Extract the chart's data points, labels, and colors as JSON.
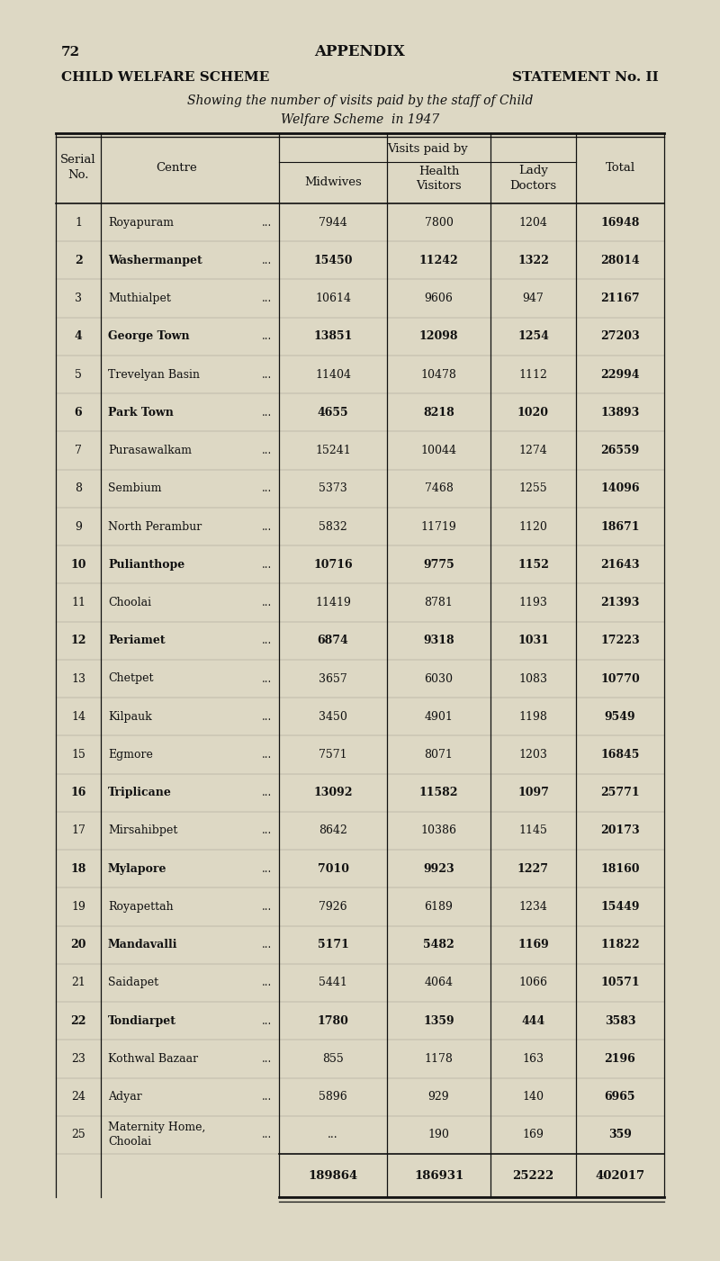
{
  "page_number": "72",
  "appendix_title": "APPENDIX",
  "left_title": "CHILD WELFARE SCHEME",
  "right_title": "STATEMENT No. II",
  "subtitle1": "Showing the number of visits paid by the staff of Child",
  "subtitle2": "Welfare Scheme  in 1947",
  "subheader": "Visits paid by",
  "col_header_serial": "Serial\nNo.",
  "col_header_centre": "Centre",
  "col_header_midwives": "Midwives",
  "col_header_hv": "Health\nVisitors",
  "col_header_ld": "Lady\nDoctors",
  "col_header_total": "Total",
  "rows": [
    {
      "serial": "1",
      "centre": "Royapuram",
      "dots": "...",
      "midwives": "7944",
      "hv": "7800",
      "ld": "1204",
      "total": "16948"
    },
    {
      "serial": "2",
      "centre": "Washermanpet",
      "dots": "...",
      "midwives": "15450",
      "hv": "11242",
      "ld": "1322",
      "total": "28014"
    },
    {
      "serial": "3",
      "centre": "Muthialpet",
      "dots": "...",
      "midwives": "10614",
      "hv": "9606",
      "ld": "947",
      "total": "21167"
    },
    {
      "serial": "4",
      "centre": "George Town",
      "dots": "...",
      "midwives": "13851",
      "hv": "12098",
      "ld": "1254",
      "total": "27203"
    },
    {
      "serial": "5",
      "centre": "Trevelyan Basin",
      "dots": "...",
      "midwives": "11404",
      "hv": "10478",
      "ld": "1112",
      "total": "22994"
    },
    {
      "serial": "6",
      "centre": "Park Town",
      "dots": "...",
      "midwives": "4655",
      "hv": "8218",
      "ld": "1020",
      "total": "13893"
    },
    {
      "serial": "7",
      "centre": "Purasawalkam",
      "dots": "...",
      "midwives": "15241",
      "hv": "10044",
      "ld": "1274",
      "total": "26559"
    },
    {
      "serial": "8",
      "centre": "Sembium",
      "dots": "...",
      "midwives": "5373",
      "hv": "7468",
      "ld": "1255",
      "total": "14096"
    },
    {
      "serial": "9",
      "centre": "North Perambur",
      "dots": "...",
      "midwives": "5832",
      "hv": "11719",
      "ld": "1120",
      "total": "18671"
    },
    {
      "serial": "10",
      "centre": "Pulianthope",
      "dots": "...",
      "midwives": "10716",
      "hv": "9775",
      "ld": "1152",
      "total": "21643"
    },
    {
      "serial": "11",
      "centre": "Choolai",
      "dots": "...",
      "midwives": "11419",
      "hv": "8781",
      "ld": "1193",
      "total": "21393"
    },
    {
      "serial": "12",
      "centre": "Periamet",
      "dots": "...",
      "midwives": "6874",
      "hv": "9318",
      "ld": "1031",
      "total": "17223"
    },
    {
      "serial": "13",
      "centre": "Chetpet",
      "dots": "...",
      "midwives": "3657",
      "hv": "6030",
      "ld": "1083",
      "total": "10770"
    },
    {
      "serial": "14",
      "centre": "Kilpauk",
      "dots": "...",
      "midwives": "3450",
      "hv": "4901",
      "ld": "1198",
      "total": "9549"
    },
    {
      "serial": "15",
      "centre": "Egmore",
      "dots": "...",
      "midwives": "7571",
      "hv": "8071",
      "ld": "1203",
      "total": "16845"
    },
    {
      "serial": "16",
      "centre": "Triplicane",
      "dots": "...",
      "midwives": "13092",
      "hv": "11582",
      "ld": "1097",
      "total": "25771"
    },
    {
      "serial": "17",
      "centre": "Mirsahibpet",
      "dots": "...",
      "midwives": "8642",
      "hv": "10386",
      "ld": "1145",
      "total": "20173"
    },
    {
      "serial": "18",
      "centre": "Mylapore",
      "dots": "...",
      "midwives": "7010",
      "hv": "9923",
      "ld": "1227",
      "total": "18160"
    },
    {
      "serial": "19",
      "centre": "Royapettah",
      "dots": "...",
      "midwives": "7926",
      "hv": "6189",
      "ld": "1234",
      "total": "15449"
    },
    {
      "serial": "20",
      "centre": "Mandavalli",
      "dots": "...",
      "midwives": "5171",
      "hv": "5482",
      "ld": "1169",
      "total": "11822"
    },
    {
      "serial": "21",
      "centre": "Saidapet",
      "dots": "...",
      "midwives": "5441",
      "hv": "4064",
      "ld": "1066",
      "total": "10571"
    },
    {
      "serial": "22",
      "centre": "Tondiarpet",
      "dots": "...",
      "midwives": "1780",
      "hv": "1359",
      "ld": "444",
      "total": "3583"
    },
    {
      "serial": "23",
      "centre": "Kothwal Bazaar",
      "dots": "...",
      "midwives": "855",
      "hv": "1178",
      "ld": "163",
      "total": "2196"
    },
    {
      "serial": "24",
      "centre": "Adyar",
      "dots": "...",
      "midwives": "5896",
      "hv": "929",
      "ld": "140",
      "total": "6965"
    },
    {
      "serial": "25",
      "centre": "Maternity Home,\nChoolai",
      "dots": "...",
      "midwives": "...",
      "hv": "190",
      "ld": "169",
      "total": "359"
    }
  ],
  "totals": {
    "midwives": "189864",
    "hv": "186931",
    "ld": "25222",
    "total": "402017"
  },
  "bg_color": "#ddd8c4",
  "line_color": "#111111",
  "text_color": "#111111"
}
